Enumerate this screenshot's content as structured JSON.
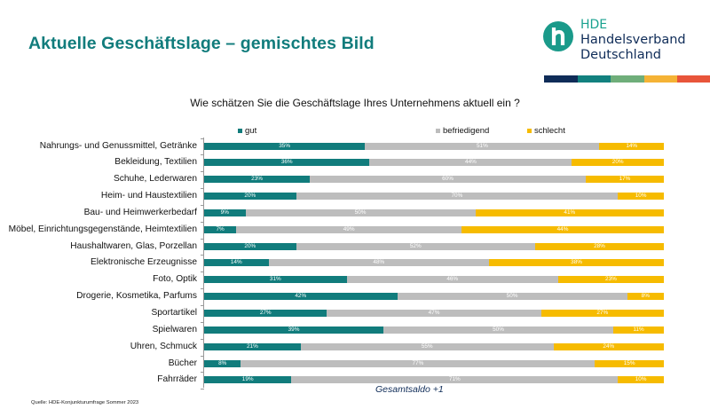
{
  "header": {
    "title": "Aktuelle Geschäftslage – gemischtes Bild"
  },
  "logo": {
    "short": "HDE",
    "line1": "Handelsverband",
    "line2": "Deutschland",
    "icon": "hde-h-logo-icon",
    "stripe_colors": [
      "#0f2c58",
      "#12817f",
      "#6fae7a",
      "#f5b335",
      "#e8553a"
    ]
  },
  "colors": {
    "title": "#117c7c",
    "gut": "#117c7c",
    "befriedigend": "#bdbdbd",
    "schlecht": "#f6bb00"
  },
  "chart_data": {
    "type": "bar",
    "orientation": "horizontal-stacked-100",
    "title": "Wie schätzen Sie die Geschäftslage Ihres Unternehmens aktuell ein ?",
    "xlabel": "",
    "ylabel": "",
    "xlim": [
      0,
      100
    ],
    "unit": "%",
    "legend_position": "top",
    "grid": false,
    "categories": [
      "Nahrungs- und Genussmittel, Getränke",
      "Bekleidung, Textilien",
      "Schuhe, Lederwaren",
      "Heim- und Haustextilien",
      "Bau- und Heimwerkerbedarf",
      "Möbel, Einrichtungsgegenstände, Heimtextilien",
      "Haushaltwaren, Glas, Porzellan",
      "Elektronische Erzeugnisse",
      "Foto, Optik",
      "Drogerie, Kosmetika, Parfums",
      "Sportartikel",
      "Spielwaren",
      "Uhren, Schmuck",
      "Bücher",
      "Fahrräder"
    ],
    "series": [
      {
        "name": "gut",
        "values": [
          35,
          36,
          23,
          20,
          9,
          7,
          20,
          14,
          31,
          42,
          27,
          39,
          21,
          8,
          19
        ]
      },
      {
        "name": "befriedigend",
        "values": [
          51,
          44,
          60,
          70,
          50,
          49,
          52,
          48,
          46,
          50,
          47,
          50,
          55,
          77,
          71
        ]
      },
      {
        "name": "schlecht",
        "values": [
          14,
          20,
          17,
          10,
          41,
          44,
          28,
          38,
          23,
          8,
          27,
          11,
          24,
          15,
          10
        ]
      }
    ],
    "annotation": "Gesamtsaldo +1"
  },
  "footer": {
    "source": "Quelle: HDE-Konjunkturumfrage Sommer 2023"
  }
}
